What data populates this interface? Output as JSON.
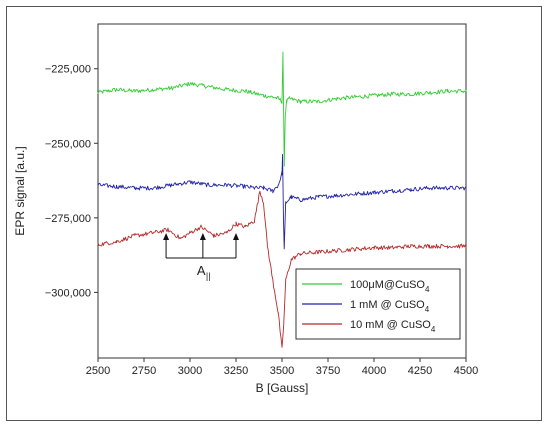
{
  "chart_data": {
    "type": "line",
    "xlabel": "B [Gauss]",
    "ylabel": "EPR signal [a.u.]",
    "xlim": [
      2500,
      4500
    ],
    "ylim": [
      -322000,
      -210000
    ],
    "x_ticks": [
      2500,
      2750,
      3000,
      3250,
      3500,
      3750,
      4000,
      4250,
      4500
    ],
    "x_tick_labels": [
      "2500",
      "2750",
      "3000",
      "3250",
      "3500",
      "3750",
      "4000",
      "4250",
      "4500"
    ],
    "y_ticks": [
      -225000,
      -250000,
      -275000,
      -300000
    ],
    "y_tick_labels": [
      "−225,000",
      "−250,000",
      "−275,000",
      "−300,000"
    ],
    "grid": false,
    "legend_position": "bottom-right",
    "series": [
      {
        "name": "100μM@CuSO",
        "name_sub": "4",
        "color": "#33cc33",
        "x": [
          2500,
          2600,
          2700,
          2800,
          2900,
          3000,
          3100,
          3200,
          3300,
          3400,
          3450,
          3480,
          3500,
          3505,
          3512,
          3518,
          3525,
          3540,
          3600,
          3700,
          3800,
          3900,
          4000,
          4100,
          4200,
          4300,
          4400,
          4500
        ],
        "y": [
          -233000,
          -232000,
          -232500,
          -232000,
          -231500,
          -230000,
          -231000,
          -232000,
          -232500,
          -234000,
          -234500,
          -235000,
          -236000,
          -220000,
          -257000,
          -240000,
          -236000,
          -235000,
          -236000,
          -236000,
          -235000,
          -234500,
          -234000,
          -233500,
          -233500,
          -233000,
          -232500,
          -232500
        ]
      },
      {
        "name": "1 mM @ CuSO",
        "name_sub": "4",
        "color": "#2222aa",
        "x": [
          2500,
          2600,
          2700,
          2800,
          2900,
          3000,
          3100,
          3200,
          3300,
          3350,
          3400,
          3450,
          3480,
          3500,
          3503,
          3508,
          3512,
          3520,
          3550,
          3600,
          3700,
          3800,
          3900,
          4000,
          4100,
          4200,
          4300,
          4400,
          4500
        ],
        "y": [
          -264000,
          -264500,
          -265000,
          -265000,
          -264000,
          -263000,
          -264000,
          -264000,
          -264500,
          -265000,
          -265000,
          -266000,
          -264000,
          -260000,
          -254000,
          -275000,
          -286000,
          -270000,
          -268000,
          -269000,
          -268000,
          -267500,
          -267000,
          -266500,
          -266000,
          -265500,
          -265000,
          -265000,
          -265000
        ]
      },
      {
        "name": "10 mM @ CuSO",
        "name_sub": "4",
        "color": "#b52a2a",
        "x": [
          2500,
          2600,
          2700,
          2800,
          2880,
          2950,
          3000,
          3060,
          3130,
          3200,
          3250,
          3300,
          3350,
          3380,
          3400,
          3420,
          3450,
          3480,
          3500,
          3510,
          3520,
          3550,
          3600,
          3700,
          3800,
          3900,
          4000,
          4100,
          4200,
          4300,
          4400,
          4500
        ],
        "y": [
          -284000,
          -283000,
          -281000,
          -280000,
          -279000,
          -282000,
          -280000,
          -278000,
          -281000,
          -280000,
          -277000,
          -278000,
          -276000,
          -266000,
          -270000,
          -284000,
          -296000,
          -307000,
          -319000,
          -310000,
          -296000,
          -289000,
          -287000,
          -286500,
          -286000,
          -285500,
          -285000,
          -285000,
          -284500,
          -284500,
          -284500,
          -284500
        ]
      }
    ],
    "annotations": {
      "label": "A",
      "label_sub": "||",
      "arrow_x": [
        2870,
        3070,
        3250
      ]
    }
  }
}
